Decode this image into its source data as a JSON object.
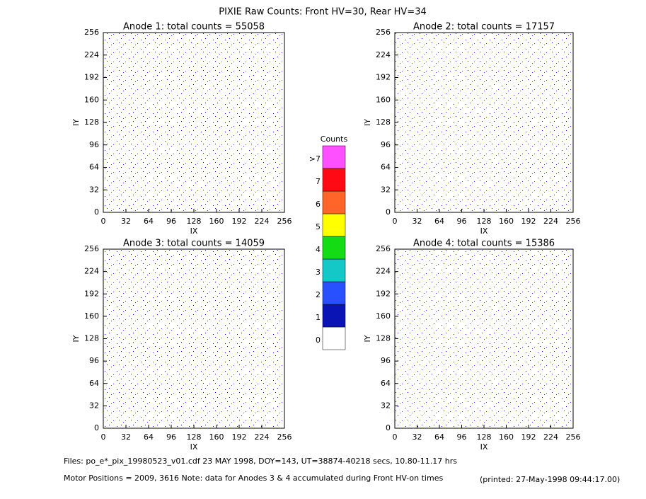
{
  "title": "PIXIE Raw Counts:  Front HV=30, Rear HV=34",
  "chart_data": [
    {
      "type": "heatmap",
      "title": "Anode 1: total counts = 55058",
      "x_label": "IX",
      "y_label": "IY",
      "xlim": [
        0,
        256
      ],
      "ylim": [
        0,
        256
      ],
      "xticks": [
        0,
        32,
        64,
        96,
        128,
        160,
        192,
        224,
        256
      ],
      "yticks": [
        0,
        32,
        64,
        96,
        128,
        160,
        192,
        224,
        256
      ]
    },
    {
      "type": "heatmap",
      "title": "Anode 2: total counts = 17157",
      "x_label": "IX",
      "y_label": "IY",
      "xlim": [
        0,
        256
      ],
      "ylim": [
        0,
        256
      ],
      "xticks": [
        0,
        32,
        64,
        96,
        128,
        160,
        192,
        224,
        256
      ],
      "yticks": [
        0,
        32,
        64,
        96,
        128,
        160,
        192,
        224,
        256
      ]
    },
    {
      "type": "heatmap",
      "title": "Anode 3: total counts = 14059",
      "x_label": "IX",
      "y_label": "IY",
      "xlim": [
        0,
        256
      ],
      "ylim": [
        0,
        256
      ],
      "xticks": [
        0,
        32,
        64,
        96,
        128,
        160,
        192,
        224,
        256
      ],
      "yticks": [
        0,
        32,
        64,
        96,
        128,
        160,
        192,
        224,
        256
      ]
    },
    {
      "type": "heatmap",
      "title": "Anode 4: total counts = 15386",
      "x_label": "IX",
      "y_label": "IY",
      "xlim": [
        0,
        256
      ],
      "ylim": [
        0,
        256
      ],
      "xticks": [
        0,
        32,
        64,
        96,
        128,
        160,
        192,
        224,
        256
      ],
      "yticks": [
        0,
        32,
        64,
        96,
        128,
        160,
        192,
        224,
        256
      ]
    }
  ],
  "colorbar": {
    "title": "Counts",
    "categories": [
      "0",
      "1",
      "2",
      "3",
      "4",
      "5",
      "6",
      "7",
      ">7"
    ],
    "colors": [
      "#ffffff",
      "#0a14b4",
      "#2850ff",
      "#14c8c8",
      "#14dc14",
      "#ffff00",
      "#ff6428",
      "#ff0a14",
      "#ff50ff"
    ]
  },
  "footer": {
    "files": "Files: po_e*_pix_19980523_v01.cdf    23 MAY 1998, DOY=143, UT=38874-40218 secs, 10.80-11.17 hrs",
    "motor": "Motor Positions = 2009, 3616    Note: data for Anodes 3 & 4 accumulated during Front HV-on times",
    "printed": "(printed: 27-May-1998 09:44:17.00)"
  }
}
